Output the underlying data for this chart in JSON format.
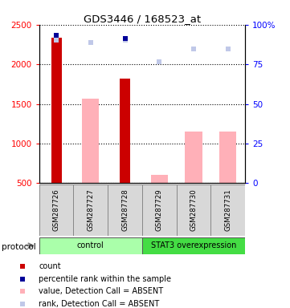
{
  "title": "GDS3446 / 168523_at",
  "samples": [
    "GSM287726",
    "GSM287727",
    "GSM287728",
    "GSM287729",
    "GSM287730",
    "GSM287731"
  ],
  "count_values": [
    2340,
    null,
    1820,
    null,
    null,
    null
  ],
  "value_absent": [
    null,
    1570,
    null,
    610,
    1150,
    1150
  ],
  "rank_absent": [
    2310,
    2270,
    2310,
    2030,
    2190,
    2190
  ],
  "percentile_present": [
    2370,
    null,
    2330,
    null,
    null,
    null
  ],
  "ylim_left": [
    500,
    2500
  ],
  "ylim_right": [
    0,
    100
  ],
  "yticks_left": [
    500,
    1000,
    1500,
    2000,
    2500
  ],
  "ytick_labels_left": [
    "500",
    "1000",
    "1500",
    "2000",
    "2500"
  ],
  "yticks_right": [
    0,
    25,
    50,
    75,
    100
  ],
  "ytick_labels_right": [
    "0",
    "25",
    "50",
    "75",
    "100%"
  ],
  "protocol_groups": [
    {
      "label": "control",
      "start": 0,
      "end": 3,
      "color": "#aaffaa"
    },
    {
      "label": "STAT3 overexpression",
      "start": 3,
      "end": 6,
      "color": "#44dd44"
    }
  ],
  "color_count": "#cc0000",
  "color_percentile": "#000099",
  "color_value_absent": "#ffb0b8",
  "color_rank_absent": "#c0c8e8",
  "legend_items": [
    {
      "color": "#cc0000",
      "label": "count"
    },
    {
      "color": "#000099",
      "label": "percentile rank within the sample"
    },
    {
      "color": "#ffb0b8",
      "label": "value, Detection Call = ABSENT"
    },
    {
      "color": "#c0c8e8",
      "label": "rank, Detection Call = ABSENT"
    }
  ]
}
